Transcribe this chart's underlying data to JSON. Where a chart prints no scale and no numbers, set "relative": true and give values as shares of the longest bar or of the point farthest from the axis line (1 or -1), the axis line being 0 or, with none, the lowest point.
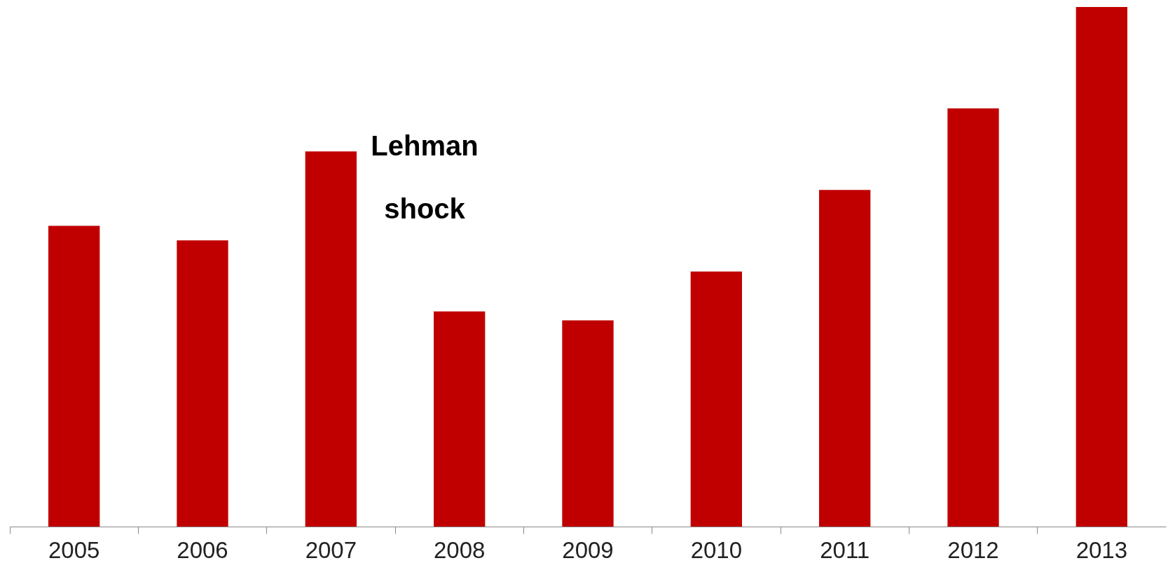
{
  "chart_data": {
    "type": "bar",
    "relative": true,
    "categories": [
      "2005",
      "2006",
      "2007",
      "2008",
      "2009",
      "2010",
      "2011",
      "2012",
      "2013"
    ],
    "values": [
      0.579,
      0.551,
      0.722,
      0.414,
      0.397,
      0.491,
      0.648,
      0.805,
      1
    ],
    "color": "#c00000",
    "annotations": [
      "Lehman shock"
    ],
    "grid": false
  }
}
